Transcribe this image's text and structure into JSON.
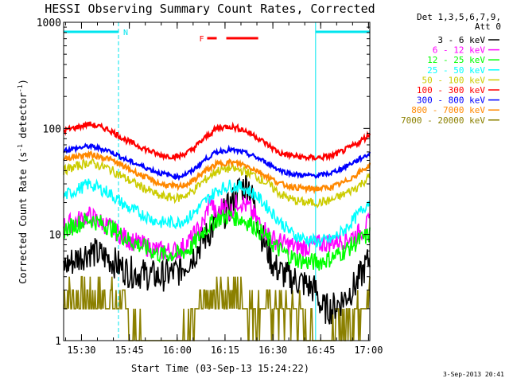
{
  "chart_data": {
    "type": "line",
    "title": "HESSI Observing Summary Count Rates, Corrected",
    "xlabel": "Start Time (03-Sep-13 15:24:22)",
    "ylabel_main": "Corrected Count Rate (s",
    "ylabel_sup1": "-1",
    "ylabel_mid": " detector",
    "ylabel_sup2": "-1",
    "ylabel_end": ")",
    "yscale": "log",
    "ylim": [
      1,
      1000
    ],
    "xlim_minutes": [
      0,
      96
    ],
    "x_ticks": [
      {
        "label": "15:30",
        "min": 5.6
      },
      {
        "label": "15:45",
        "min": 20.6
      },
      {
        "label": "16:00",
        "min": 35.6
      },
      {
        "label": "16:15",
        "min": 50.6
      },
      {
        "label": "16:30",
        "min": 65.6
      },
      {
        "label": "16:45",
        "min": 80.6
      },
      {
        "label": "17:00",
        "min": 95.6
      }
    ],
    "y_ticks": [
      {
        "label": "1",
        "value": 1
      },
      {
        "label": "10",
        "value": 10
      },
      {
        "label": "100",
        "value": 100
      },
      {
        "label": "1000",
        "value": 1000
      }
    ],
    "legend_header": [
      "Det 1,3,5,6,7,9,",
      "Att 0"
    ],
    "flags": [
      {
        "label": "N",
        "color": "#00e5ee",
        "intervals": [
          [
            0,
            17.2
          ],
          [
            79.0,
            96
          ]
        ]
      },
      {
        "label": "F",
        "color": "#ff0000",
        "intervals": [
          [
            45.0,
            48.0
          ],
          [
            51.0,
            61.0
          ]
        ]
      }
    ],
    "night_boundaries_minutes": [
      0,
      17.2,
      79.0,
      96
    ],
    "series": [
      {
        "name": "3 - 6 keV",
        "color": "#000000",
        "x": [
          0,
          8,
          14,
          20,
          30,
          36,
          40,
          44,
          48,
          52,
          55,
          58,
          62,
          66,
          70,
          75,
          79,
          81,
          84,
          88,
          92,
          96
        ],
        "y": [
          5,
          7,
          6,
          4.5,
          4,
          4.5,
          6,
          9,
          13,
          18,
          27,
          30,
          10,
          5,
          4,
          3.5,
          3,
          2,
          2,
          2.5,
          3.5,
          6
        ]
      },
      {
        "name": "6 - 12 keV",
        "color": "#ff00ff",
        "x": [
          0,
          8,
          14,
          20,
          30,
          36,
          40,
          44,
          46,
          48,
          50,
          52,
          55,
          58,
          62,
          66,
          70,
          75,
          79,
          84,
          88,
          92,
          96
        ],
        "y": [
          12,
          15,
          12,
          9,
          7,
          7,
          9,
          13,
          22,
          14,
          20,
          16,
          21,
          18,
          12,
          9,
          8,
          7.5,
          8,
          8.5,
          9,
          10,
          13
        ]
      },
      {
        "name": "12 - 25 keV",
        "color": "#00ff00",
        "x": [
          0,
          8,
          14,
          20,
          30,
          36,
          40,
          44,
          48,
          52,
          56,
          60,
          64,
          68,
          72,
          76,
          80,
          84,
          88,
          92,
          96
        ],
        "y": [
          11,
          14,
          12,
          9,
          6.5,
          6.5,
          7.5,
          11,
          14,
          15,
          14,
          12,
          9,
          7,
          6,
          5.5,
          5.5,
          6,
          7,
          8.5,
          10
        ]
      },
      {
        "name": "25 - 50 keV",
        "color": "#00ffff",
        "x": [
          0,
          8,
          14,
          20,
          30,
          36,
          40,
          44,
          48,
          52,
          56,
          60,
          64,
          68,
          72,
          76,
          80,
          84,
          88,
          92,
          96
        ],
        "y": [
          23,
          30,
          25,
          18,
          13,
          13,
          15,
          20,
          26,
          29,
          28,
          24,
          18,
          13,
          10,
          9,
          8.5,
          9,
          11,
          15,
          21
        ]
      },
      {
        "name": "50 - 100 keV",
        "color": "#cccc00",
        "x": [
          0,
          8,
          14,
          20,
          30,
          36,
          40,
          44,
          48,
          52,
          56,
          60,
          64,
          68,
          72,
          76,
          80,
          84,
          88,
          92,
          96
        ],
        "y": [
          40,
          48,
          42,
          33,
          23,
          22,
          25,
          32,
          40,
          42,
          40,
          36,
          30,
          24,
          21,
          20,
          20,
          21,
          24,
          28,
          35
        ]
      },
      {
        "name": "100 - 300 keV",
        "color": "#ff0000",
        "x": [
          0,
          8,
          14,
          20,
          30,
          36,
          40,
          44,
          48,
          52,
          56,
          60,
          64,
          68,
          72,
          76,
          80,
          84,
          88,
          92,
          96
        ],
        "y": [
          95,
          110,
          98,
          76,
          56,
          54,
          62,
          80,
          100,
          105,
          98,
          85,
          70,
          58,
          55,
          53,
          53,
          55,
          62,
          72,
          88
        ]
      },
      {
        "name": "300 - 800 keV",
        "color": "#0000ff",
        "x": [
          0,
          8,
          14,
          20,
          30,
          36,
          40,
          44,
          48,
          52,
          56,
          60,
          64,
          68,
          72,
          76,
          80,
          84,
          88,
          92,
          96
        ],
        "y": [
          62,
          68,
          62,
          50,
          38,
          35,
          39,
          50,
          60,
          63,
          60,
          54,
          47,
          40,
          37,
          36,
          36,
          38,
          43,
          50,
          58
        ]
      },
      {
        "name": "800 - 7000 keV",
        "color": "#ff8800",
        "x": [
          0,
          8,
          14,
          20,
          30,
          36,
          40,
          44,
          48,
          52,
          56,
          60,
          64,
          68,
          72,
          76,
          80,
          84,
          88,
          92,
          96
        ],
        "y": [
          52,
          57,
          52,
          42,
          30,
          28,
          31,
          39,
          46,
          48,
          46,
          41,
          35,
          30,
          28,
          27,
          27,
          28,
          31,
          37,
          45
        ]
      },
      {
        "name": "7000 - 20000 keV",
        "color": "#8b8000",
        "x": [
          0,
          8,
          14,
          18,
          20,
          24,
          30,
          36,
          40,
          44,
          48,
          52,
          56,
          60,
          64,
          68,
          72,
          76,
          80,
          84,
          88,
          92,
          96
        ],
        "y": [
          2.5,
          2.5,
          2.5,
          2.5,
          1.5,
          1,
          1,
          1,
          1.5,
          2,
          2.5,
          3,
          2.5,
          2,
          2,
          2,
          2,
          1.5,
          1,
          1,
          1.5,
          2,
          2.5
        ]
      }
    ]
  },
  "footer_date": "3-Sep-2013 20:41"
}
